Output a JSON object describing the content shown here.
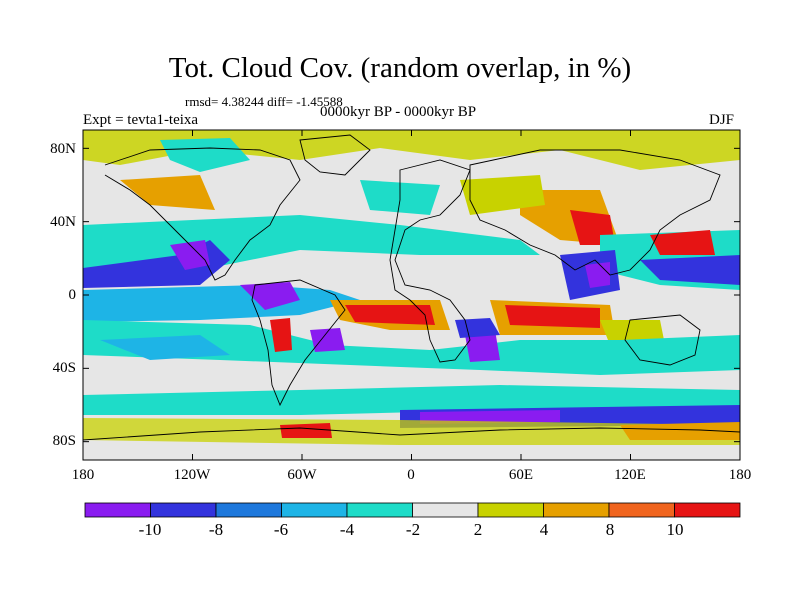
{
  "title": "Tot. Cloud Cov. (random overlap, in %)",
  "stats_line": "rmsd= 4.38244 diff= -1.45588",
  "period_line": "0000kyr BP - 0000kyr BP",
  "experiment_label": "Expt = tevta1-teixa",
  "season_label": "DJF",
  "map": {
    "lon_ticks": [
      "180",
      "120W",
      "60W",
      "0",
      "60E",
      "120E",
      "180"
    ],
    "lat_ticks": [
      "80N",
      "40N",
      "0",
      "40S",
      "80S"
    ],
    "lon_range": [
      -180,
      180
    ],
    "lat_range": [
      -90,
      90
    ],
    "projection": "cylindrical-equidistant",
    "background_color": "#e6e6e6"
  },
  "colorbar": {
    "labels": [
      "-10",
      "-8",
      "-6",
      "-4",
      "-2",
      "2",
      "4",
      "8",
      "10"
    ],
    "colors": [
      "#8a1cf0",
      "#3333dd",
      "#1e78dc",
      "#1eb4e6",
      "#1edcc8",
      "#e6e6e6",
      "#c8d200",
      "#e6a000",
      "#f0641e",
      "#e61414"
    ]
  }
}
